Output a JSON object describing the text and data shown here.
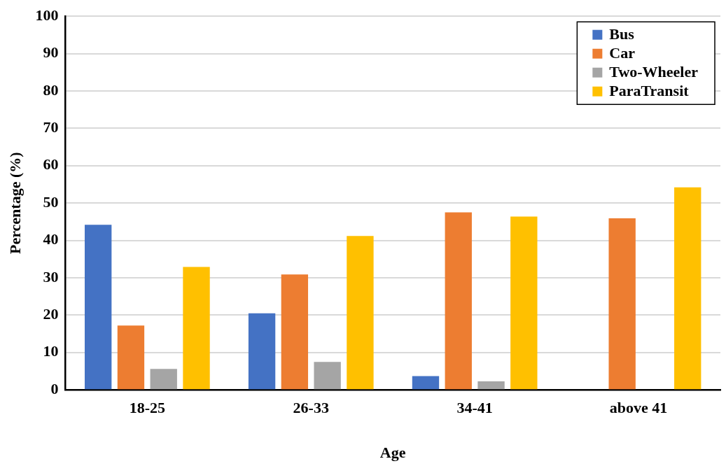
{
  "chart_data": {
    "type": "bar",
    "xlabel": "Age",
    "ylabel": "Percentage (%)",
    "categories": [
      "18-25",
      "26-33",
      "34-41",
      "above 41"
    ],
    "series": [
      {
        "name": "Bus",
        "color": "#4472c4",
        "values": [
          44.2,
          20.5,
          3.7,
          0
        ]
      },
      {
        "name": "Car",
        "color": "#ed7d31",
        "values": [
          17.2,
          30.9,
          47.5,
          45.9
        ]
      },
      {
        "name": "Two-Wheeler",
        "color": "#a5a5a5",
        "values": [
          5.6,
          7.5,
          2.3,
          0
        ]
      },
      {
        "name": "ParaTransit",
        "color": "#ffc000",
        "values": [
          32.9,
          41.2,
          46.4,
          54.2
        ]
      }
    ],
    "ylim": [
      0,
      100
    ],
    "yticks": [
      0,
      10,
      20,
      30,
      40,
      50,
      60,
      70,
      80,
      90,
      100
    ],
    "grid": "y",
    "legend": "top right"
  }
}
